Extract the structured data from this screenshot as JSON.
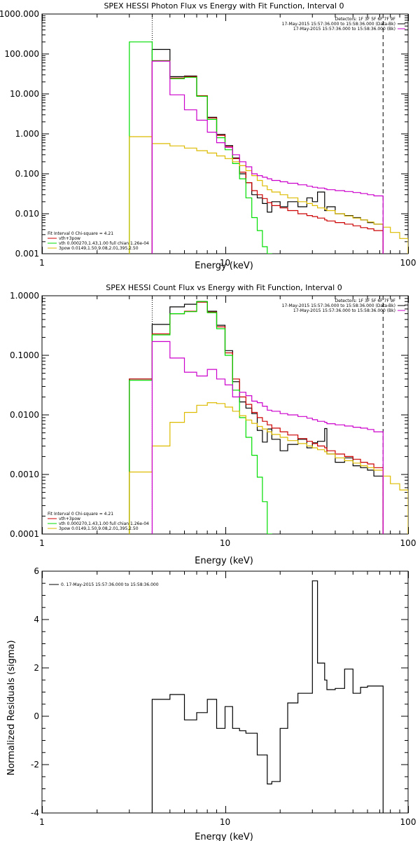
{
  "chart_data": [
    {
      "type": "line",
      "title": "SPEX HESSI Photon Flux vs Energy with Fit Function, Interval 0",
      "xlabel": "Energy (keV)",
      "ylabel": "",
      "xscale": "log",
      "yscale": "log",
      "xlim": [
        1,
        100
      ],
      "ylim": [
        0.001,
        1000
      ],
      "xticklabels": [
        "1",
        "10",
        "100"
      ],
      "yticks": [
        0.001,
        0.01,
        0.1,
        1,
        10,
        100,
        1000
      ],
      "yticklabels": [
        "0.001",
        "0.010",
        "0.100",
        "1.000",
        "10.000",
        "100.000",
        "1000.000"
      ],
      "annotations": {
        "top_right": [
          "Detectors: 1F 3F 5F 6F 7F 9F",
          "17-May-2015 15:57:36.000 to 15:58:36.000 (Data-Bk)",
          "17-May-2015 15:57:36.000 to 15:58:36.000 (Bk)"
        ],
        "bottom_left": [
          "Fit Interval 0   Chi-square = 4.21",
          "vth+3pow",
          "vth 0.000270,1.43,1.00   full chian 1.26e-04",
          "3pow 0.0149,1.50,9.08,2.01,395,2.50"
        ]
      },
      "vlines": [
        {
          "x": 4,
          "style": "dotted",
          "color": "#000000"
        },
        {
          "x": 73,
          "style": "dashed",
          "color": "#000000"
        }
      ],
      "series": [
        {
          "name": "Data-Bk",
          "color": "#000000",
          "edges": [
            4,
            5,
            6,
            7,
            8,
            9,
            10,
            11,
            12,
            13,
            14,
            15,
            16,
            17,
            18,
            20,
            22,
            25,
            28,
            30,
            32,
            35,
            36,
            40,
            45,
            50,
            55,
            60,
            65,
            73
          ],
          "values": [
            130,
            27,
            28,
            9,
            2.6,
            0.97,
            0.51,
            0.25,
            0.1,
            0.06,
            0.03,
            0.025,
            0.018,
            0.011,
            0.02,
            0.015,
            0.02,
            0.015,
            0.025,
            0.02,
            0.035,
            0.012,
            0.015,
            0.01,
            0.009,
            0.008,
            0.007,
            0.006,
            0.0055
          ]
        },
        {
          "name": "vth+3pow",
          "color": "#cc0000",
          "edges": [
            4,
            5,
            6,
            7,
            8,
            9,
            10,
            11,
            12,
            13,
            14,
            15,
            16,
            17,
            18,
            20,
            22,
            25,
            28,
            30,
            32,
            35,
            36,
            40,
            45,
            50,
            55,
            60,
            65,
            73
          ],
          "values": [
            68,
            25,
            27,
            9,
            2.5,
            0.92,
            0.48,
            0.24,
            0.11,
            0.06,
            0.038,
            0.03,
            0.024,
            0.019,
            0.016,
            0.014,
            0.012,
            0.01,
            0.009,
            0.0085,
            0.0078,
            0.007,
            0.0066,
            0.006,
            0.0055,
            0.005,
            0.0045,
            0.0042,
            0.0038
          ]
        },
        {
          "name": "vth",
          "color": "#00dd00",
          "edges": [
            3,
            4,
            5,
            6,
            7,
            8,
            9,
            10,
            11,
            12,
            13,
            14,
            15,
            16,
            17,
            18
          ],
          "values": [
            200,
            67,
            24,
            26,
            8.7,
            2.3,
            0.8,
            0.4,
            0.18,
            0.075,
            0.025,
            0.008,
            0.0038,
            0.0015,
            0.001
          ]
        },
        {
          "name": "3pow",
          "color": "#ddbb00",
          "edges": [
            3,
            4,
            5,
            6,
            7,
            8,
            9,
            10,
            11,
            12,
            13,
            14,
            15,
            16,
            17,
            18,
            20,
            22,
            25,
            28,
            30,
            32,
            35,
            36,
            40,
            45,
            50,
            55,
            60,
            65,
            73,
            80,
            90,
            100
          ],
          "values": [
            0.85,
            0.57,
            0.5,
            0.44,
            0.38,
            0.33,
            0.28,
            0.24,
            0.2,
            0.16,
            0.12,
            0.09,
            0.068,
            0.05,
            0.04,
            0.035,
            0.03,
            0.025,
            0.02,
            0.018,
            0.016,
            0.014,
            0.013,
            0.012,
            0.01,
            0.0088,
            0.0078,
            0.007,
            0.0062,
            0.0055,
            0.0046,
            0.0034,
            0.0024
          ]
        },
        {
          "name": "Bk",
          "color": "#cc00cc",
          "edges": [
            4,
            5,
            6,
            7,
            8,
            9,
            10,
            11,
            12,
            13,
            14,
            15,
            16,
            17,
            18,
            20,
            22,
            25,
            28,
            30,
            32,
            35,
            36,
            40,
            45,
            50,
            55,
            60,
            65,
            73
          ],
          "values": [
            66,
            9.5,
            4,
            2.2,
            1.1,
            0.6,
            0.46,
            0.3,
            0.2,
            0.15,
            0.1,
            0.09,
            0.082,
            0.075,
            0.068,
            0.063,
            0.058,
            0.053,
            0.049,
            0.046,
            0.044,
            0.042,
            0.04,
            0.038,
            0.036,
            0.034,
            0.032,
            0.03,
            0.028
          ]
        }
      ]
    },
    {
      "type": "line",
      "title": "SPEX HESSI Count Flux vs Energy with Fit Function, Interval 0",
      "xlabel": "Energy (keV)",
      "ylabel": "",
      "xscale": "log",
      "yscale": "log",
      "xlim": [
        1,
        100
      ],
      "ylim": [
        0.0001,
        1
      ],
      "xticklabels": [
        "1",
        "10",
        "100"
      ],
      "yticks": [
        0.0001,
        0.001,
        0.01,
        0.1,
        1
      ],
      "yticklabels": [
        "0.0001",
        "0.0010",
        "0.0100",
        "0.1000",
        "1.0000"
      ],
      "annotations": {
        "top_right": [
          "Detectors: 1F 3F 5F 6F 7F 9F",
          "17-May-2015 15:57:36.000 to 15:58:36.000 (Data-Bk)",
          "17-May-2015 15:57:36.000 to 15:58:36.000 (Bk)"
        ],
        "bottom_left": [
          "Fit Interval 0   Chi-square = 4.21",
          "vth+3pow",
          "vth 0.000270,1.43,1.00   full chian 1.26e-04",
          "3pow 0.0149,1.50,9.08,2.01,395,2.50"
        ]
      },
      "vlines": [
        {
          "x": 4,
          "style": "dotted",
          "color": "#000000"
        },
        {
          "x": 73,
          "style": "dashed",
          "color": "#000000"
        }
      ],
      "series": [
        {
          "name": "Data-Bk",
          "color": "#000000",
          "edges": [
            3,
            4,
            5,
            6,
            7,
            8,
            9,
            10,
            11,
            12,
            13,
            14,
            15,
            16,
            17,
            18,
            20,
            22,
            25,
            28,
            30,
            32,
            35,
            36,
            40,
            45,
            50,
            55,
            60,
            65,
            73
          ],
          "values": [
            0.04,
            0.33,
            0.65,
            0.72,
            0.8,
            0.55,
            0.32,
            0.12,
            0.036,
            0.0165,
            0.013,
            0.0105,
            0.0055,
            0.0035,
            0.0058,
            0.0039,
            0.0025,
            0.0032,
            0.0039,
            0.0028,
            0.0034,
            0.0036,
            0.0059,
            0.0022,
            0.0016,
            0.0019,
            0.0014,
            0.0013,
            0.00118,
            0.00094
          ]
        },
        {
          "name": "vth+3pow",
          "color": "#cc0000",
          "edges": [
            3,
            4,
            5,
            6,
            7,
            8,
            9,
            10,
            11,
            12,
            13,
            14,
            15,
            16,
            17,
            18,
            20,
            22,
            25,
            28,
            30,
            32,
            35,
            36,
            40,
            45,
            50,
            55,
            60,
            65,
            73
          ],
          "values": [
            0.04,
            0.23,
            0.5,
            0.55,
            0.78,
            0.53,
            0.3,
            0.11,
            0.04,
            0.02,
            0.015,
            0.011,
            0.009,
            0.0078,
            0.0068,
            0.006,
            0.0052,
            0.0046,
            0.004,
            0.0036,
            0.0033,
            0.003,
            0.0028,
            0.0025,
            0.0022,
            0.002,
            0.0018,
            0.0016,
            0.0015,
            0.0013
          ]
        },
        {
          "name": "vth",
          "color": "#00dd00",
          "edges": [
            3,
            4,
            5,
            6,
            7,
            8,
            9,
            10,
            11,
            12,
            13,
            14,
            15,
            16,
            17,
            18
          ],
          "values": [
            0.038,
            0.22,
            0.5,
            0.54,
            0.8,
            0.52,
            0.28,
            0.1,
            0.026,
            0.009,
            0.0042,
            0.0021,
            0.0009,
            0.00035,
            0.0001
          ]
        },
        {
          "name": "3pow",
          "color": "#ddbb00",
          "edges": [
            3,
            4,
            5,
            6,
            7,
            8,
            9,
            10,
            11,
            12,
            13,
            14,
            15,
            16,
            17,
            18,
            20,
            22,
            25,
            28,
            30,
            32,
            35,
            36,
            40,
            45,
            50,
            55,
            60,
            65,
            73,
            80,
            90,
            100
          ],
          "values": [
            0.0011,
            0.003,
            0.0075,
            0.011,
            0.0145,
            0.016,
            0.0155,
            0.0135,
            0.0115,
            0.0097,
            0.0082,
            0.0072,
            0.0064,
            0.0058,
            0.0052,
            0.0047,
            0.0042,
            0.0037,
            0.0033,
            0.003,
            0.0028,
            0.0026,
            0.0024,
            0.0022,
            0.0019,
            0.0017,
            0.00155,
            0.0014,
            0.0013,
            0.00118,
            0.00094,
            0.0007,
            0.00055
          ]
        },
        {
          "name": "Bk",
          "color": "#cc00cc",
          "edges": [
            4,
            5,
            6,
            7,
            8,
            9,
            10,
            11,
            12,
            13,
            14,
            15,
            16,
            17,
            18,
            20,
            22,
            25,
            28,
            30,
            32,
            35,
            36,
            40,
            45,
            50,
            55,
            60,
            65,
            73
          ],
          "values": [
            0.17,
            0.09,
            0.052,
            0.045,
            0.058,
            0.04,
            0.032,
            0.02,
            0.024,
            0.021,
            0.017,
            0.016,
            0.014,
            0.012,
            0.0115,
            0.0105,
            0.01,
            0.0094,
            0.0088,
            0.0083,
            0.0078,
            0.0075,
            0.0071,
            0.0068,
            0.0065,
            0.0062,
            0.006,
            0.0057,
            0.0052
          ]
        }
      ]
    },
    {
      "type": "line",
      "title": "",
      "xlabel": "Energy (keV)",
      "ylabel": "Normalized Residuals (sigma)",
      "xscale": "log",
      "yscale": "linear",
      "xlim": [
        1,
        100
      ],
      "ylim": [
        -4,
        6
      ],
      "xticklabels": [
        "1",
        "10",
        "100"
      ],
      "yticks": [
        -4,
        -2,
        0,
        2,
        4,
        6
      ],
      "yticklabels": [
        "-4",
        "-2",
        "0",
        "2",
        "4",
        "6"
      ],
      "legend": "0. 17-May-2015 15:57:36.000 to 15:58:36.000",
      "series": [
        {
          "name": "0. 17-May-2015 15:57:36.000 to 15:58:36.000",
          "color": "#000000",
          "edges": [
            4,
            5,
            6,
            7,
            8,
            9,
            10,
            11,
            12,
            13,
            14,
            15,
            16,
            17,
            18,
            20,
            22,
            25,
            28,
            30,
            32,
            35,
            36,
            40,
            45,
            50,
            55,
            60,
            65,
            73
          ],
          "values": [
            0.7,
            0.9,
            -0.15,
            0.15,
            0.7,
            -0.5,
            0.4,
            -0.5,
            -0.6,
            -0.7,
            -0.7,
            -1.6,
            -1.6,
            -2.8,
            -2.7,
            -0.5,
            0.55,
            0.95,
            0.95,
            5.6,
            2.2,
            1.5,
            1.1,
            1.15,
            1.95,
            0.95,
            1.2,
            1.25,
            1.25
          ]
        }
      ]
    }
  ]
}
